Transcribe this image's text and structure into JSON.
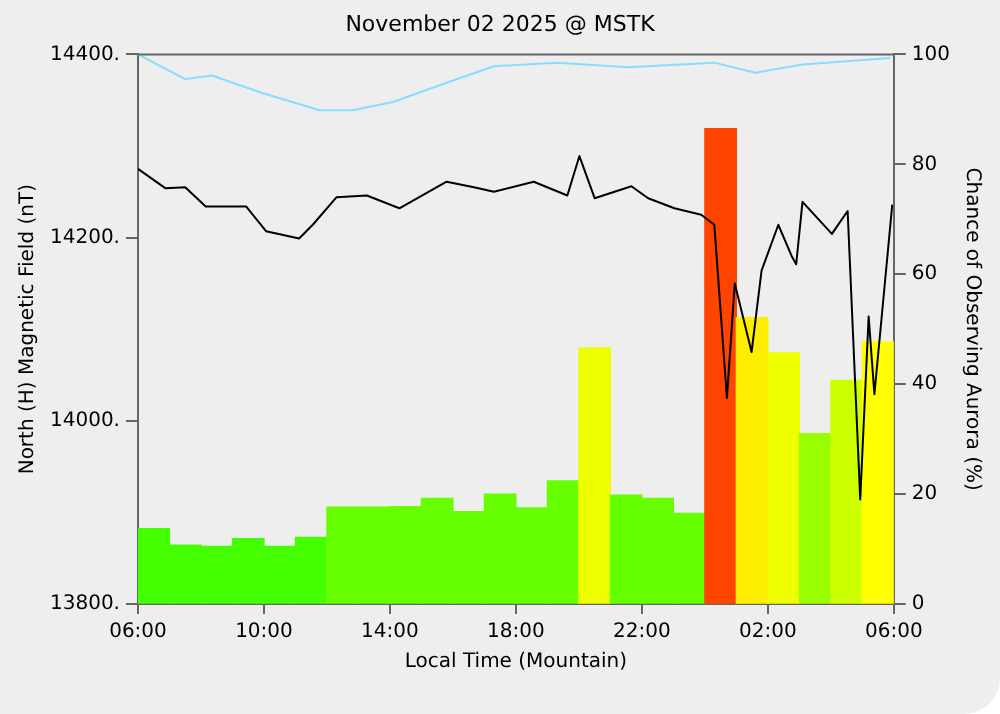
{
  "chart_data": {
    "type": "line",
    "title": "November 02 2025 @ MSTK",
    "xlabel": "Local Time (Mountain)",
    "ylabel": "North (H) Magnetic Field (nT)",
    "y2label": "Chance of Observing Aurora (%)",
    "xlim": [
      "2025-11-02T06:00",
      "2025-11-03T06:00"
    ],
    "xticks": [
      {
        "value": "2025-11-02T06:00",
        "label": "06:00"
      },
      {
        "value": "2025-11-02T10:00",
        "label": "10:00"
      },
      {
        "value": "2025-11-02T14:00",
        "label": "14:00"
      },
      {
        "value": "2025-11-02T18:00",
        "label": "18:00"
      },
      {
        "value": "2025-11-02T22:00",
        "label": "22:00"
      },
      {
        "value": "2025-11-03T02:00",
        "label": "02:00"
      },
      {
        "value": "2025-11-03T06:00",
        "label": "06:00"
      }
    ],
    "ylim": [
      13800,
      14400
    ],
    "yticks": [
      {
        "value": 13800,
        "label": "13800."
      },
      {
        "value": 14000,
        "label": "14000."
      },
      {
        "value": 14200,
        "label": "14200."
      },
      {
        "value": 14400,
        "label": "14400."
      }
    ],
    "y2lim": [
      0,
      100
    ],
    "y2ticks": [
      0,
      20,
      40,
      60,
      80,
      100
    ],
    "marker": "none",
    "series": [
      {
        "type": "bar",
        "axis": "y2",
        "x": [
          "2025-11-02T06:30",
          "2025-11-02T07:30",
          "2025-11-02T08:30",
          "2025-11-02T09:30",
          "2025-11-02T10:30",
          "2025-11-02T11:30",
          "2025-11-02T12:30",
          "2025-11-02T13:30",
          "2025-11-02T14:30",
          "2025-11-02T15:30",
          "2025-11-02T16:30",
          "2025-11-02T17:30",
          "2025-11-02T18:30",
          "2025-11-02T19:30",
          "2025-11-02T20:30",
          "2025-11-02T21:30",
          "2025-11-02T22:30",
          "2025-11-02T23:30",
          "2025-11-03T00:30",
          "2025-11-03T01:30",
          "2025-11-03T02:30",
          "2025-11-03T03:30",
          "2025-11-03T04:30",
          "2025-11-03T05:30"
        ],
        "values": [
          13.7,
          10.7,
          10.5,
          11.9,
          10.5,
          12.1,
          17.6,
          17.6,
          17.7,
          19.2,
          16.8,
          20,
          17.5,
          22.4,
          46.6,
          19.8,
          19.2,
          16.5,
          86.5,
          52.1,
          45.7,
          31,
          40.7,
          47.7
        ],
        "colors": [
          "#44ff00",
          "#44ff00",
          "#44ff00",
          "#44ff00",
          "#44ff00",
          "#44ff00",
          "#66ff00",
          "#66ff00",
          "#66ff00",
          "#66ff00",
          "#66ff00",
          "#66ff00",
          "#66ff00",
          "#66ff00",
          "#eeff00",
          "#66ff00",
          "#66ff00",
          "#66ff00",
          "#ff4400",
          "#ffee00",
          "#eeff00",
          "#99ff00",
          "#ccff00",
          "#ffff00"
        ]
      },
      {
        "color": "#88ddff",
        "x": [
          "2025-11-02T06:00",
          "2025-11-02T07:30",
          "2025-11-02T08:21",
          "2025-11-02T09:51",
          "2025-11-02T11:46",
          "2025-11-02T12:48",
          "2025-11-02T14:06",
          "2025-11-02T15:48",
          "2025-11-02T17:18",
          "2025-11-02T19:18",
          "2025-11-02T21:34",
          "2025-11-03T00:18",
          "2025-11-03T01:36",
          "2025-11-03T03:06",
          "2025-11-03T05:54"
        ],
        "values": [
          14400,
          14373,
          14377,
          14359,
          14339,
          14339,
          14348,
          14369,
          14387,
          14391,
          14386,
          14391,
          14380,
          14389,
          14396
        ]
      },
      {
        "color": "#000000",
        "x": [
          "2025-11-02T06:00",
          "2025-11-02T06:52",
          "2025-11-02T07:30",
          "2025-11-02T08:09",
          "2025-11-02T09:26",
          "2025-11-02T10:04",
          "2025-11-02T11:07",
          "2025-11-02T11:33",
          "2025-11-02T12:18",
          "2025-11-02T13:16",
          "2025-11-02T14:18",
          "2025-11-02T15:48",
          "2025-11-02T16:40",
          "2025-11-02T17:18",
          "2025-11-02T18:34",
          "2025-11-02T19:38",
          "2025-11-02T20:01",
          "2025-11-02T20:30",
          "2025-11-02T21:40",
          "2025-11-02T22:12",
          "2025-11-02T23:02",
          "2025-11-02T23:53",
          "2025-11-03T00:18",
          "2025-11-03T00:42",
          "2025-11-03T00:57",
          "2025-11-03T01:29",
          "2025-11-03T01:48",
          "2025-11-03T02:20",
          "2025-11-03T02:46",
          "2025-11-03T02:54",
          "2025-11-03T03:06",
          "2025-11-03T04:02",
          "2025-11-03T04:32",
          "2025-11-03T04:56",
          "2025-11-03T05:12",
          "2025-11-03T05:23",
          "2025-11-03T05:57"
        ],
        "values": [
          14275,
          14254,
          14255,
          14234,
          14234,
          14207,
          14199,
          14214,
          14244,
          14246,
          14232,
          14261,
          14255,
          14250,
          14261,
          14246,
          14289,
          14243,
          14256,
          14243,
          14232,
          14225,
          14214,
          14025,
          14150,
          14075,
          14164,
          14214,
          14179,
          14171,
          14239,
          14204,
          14229,
          13914,
          14114,
          14029,
          14236
        ]
      }
    ]
  }
}
